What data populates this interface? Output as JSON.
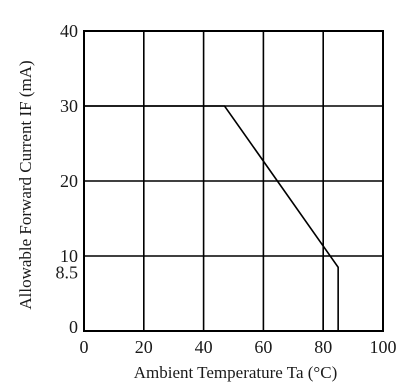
{
  "chart_data": {
    "type": "line",
    "title": "",
    "xlabel": "Ambient Temperature Ta (°C)",
    "ylabel": "Allowable Forward Current IF (mA)",
    "xlim": [
      0,
      100
    ],
    "ylim": [
      0,
      40
    ],
    "x_ticks": [
      "0",
      "20",
      "40",
      "60",
      "80",
      "100"
    ],
    "y_ticks": [
      "0",
      "10",
      "20",
      "30",
      "40"
    ],
    "y_extra_tick": "8.5",
    "grid": true,
    "series": [
      {
        "x": [
          0,
          47,
          85,
          85
        ],
        "y": [
          30,
          30,
          8.5,
          0
        ]
      }
    ],
    "reference_lines": [
      {
        "x": [
          80,
          80
        ],
        "y": [
          0,
          10
        ]
      }
    ]
  }
}
